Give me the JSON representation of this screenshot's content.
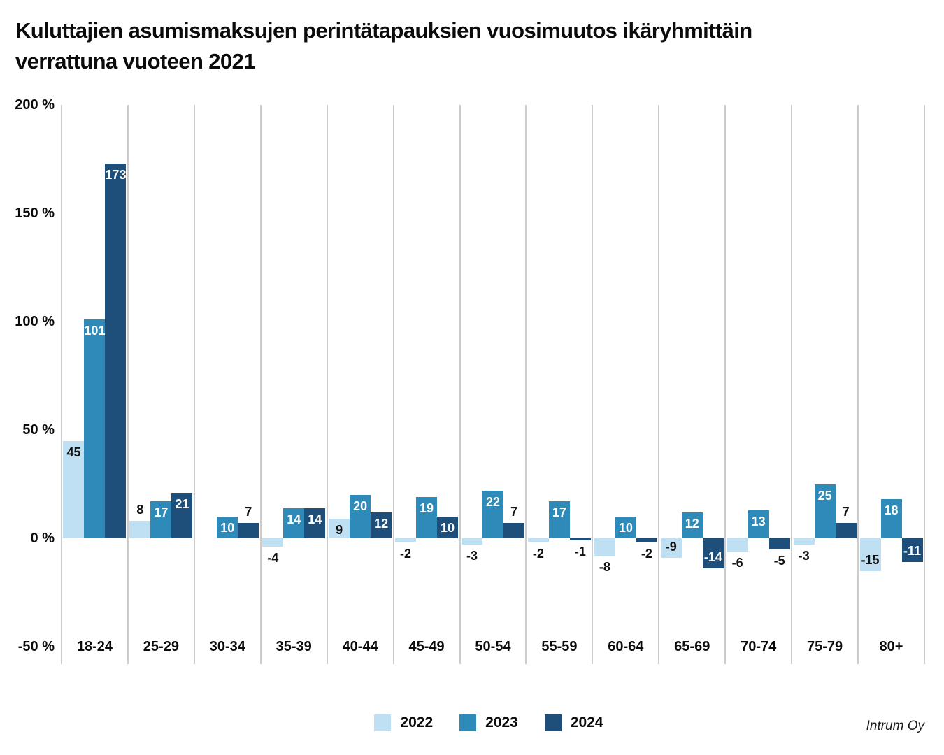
{
  "title": "Kuluttajien asumismaksujen perintätapauksien vuosimuutos ikäryhmittäin verrattuna vuoteen 2021",
  "title_lines": [
    "Kuluttajien asumismaksujen perintätapauksien vuosimuutos ikäryhmittäin",
    "verrattuna vuoteen 2021"
  ],
  "source": "Intrum Oy",
  "colors": {
    "series_2022": "#BEE0F2",
    "series_2023": "#2E8BB9",
    "series_2024": "#1E4F7B",
    "gridline": "#cccccc",
    "label_dark": "#111111",
    "label_light": "#ffffff"
  },
  "chart_data": {
    "type": "bar",
    "title": "Kuluttajien asumismaksujen perintätapauksien vuosimuutos ikäryhmittäin verrattuna vuoteen 2021",
    "xlabel": "",
    "ylabel": "",
    "ylim": [
      -50,
      200
    ],
    "grid": "vertical",
    "legend_position": "bottom-center",
    "categories": [
      "18-24",
      "25-29",
      "30-34",
      "35-39",
      "40-44",
      "45-49",
      "50-54",
      "55-59",
      "60-64",
      "65-69",
      "70-74",
      "75-79",
      "80+"
    ],
    "y_axis": {
      "tick_labels": [
        "200 %",
        "150 %",
        "100 %",
        "50 %",
        "0 %",
        "-50 %"
      ],
      "tick_values": [
        200,
        150,
        100,
        50,
        0,
        -50
      ]
    },
    "series": [
      {
        "name": "2022",
        "color": "#BEE0F2",
        "inside_label_color": "#111111",
        "values": [
          45,
          8,
          0,
          -4,
          9,
          -2,
          -3,
          -2,
          -8,
          -9,
          -6,
          -3,
          -15
        ],
        "labels": [
          "45",
          "8",
          "",
          "-4",
          "9",
          "-2",
          "-3",
          "-2",
          "-8",
          "-9",
          "-6",
          "-3",
          "-15"
        ],
        "label_placement": [
          "in",
          "above",
          "none",
          "below",
          "in",
          "below",
          "below",
          "below",
          "below",
          "in",
          "below",
          "below",
          "in"
        ]
      },
      {
        "name": "2023",
        "color": "#2E8BB9",
        "inside_label_color": "#ffffff",
        "values": [
          101,
          17,
          10,
          14,
          20,
          19,
          22,
          17,
          10,
          12,
          13,
          25,
          18
        ],
        "labels": [
          "101",
          "17",
          "10",
          "14",
          "20",
          "19",
          "22",
          "17",
          "10",
          "12",
          "13",
          "25",
          "18"
        ],
        "label_placement": [
          "in",
          "in",
          "in",
          "in",
          "in",
          "in",
          "in",
          "in",
          "in",
          "in",
          "in",
          "in",
          "in"
        ]
      },
      {
        "name": "2024",
        "color": "#1E4F7B",
        "inside_label_color": "#ffffff",
        "values": [
          173,
          21,
          7,
          14,
          12,
          10,
          7,
          -1,
          -2,
          -14,
          -5,
          7,
          -11
        ],
        "labels": [
          "173",
          "21",
          "7",
          "14",
          "12",
          "10",
          "7",
          "-1",
          "-2",
          "-14",
          "-5",
          "7",
          "-11"
        ],
        "label_placement": [
          "in",
          "in",
          "above",
          "in",
          "in",
          "in",
          "above",
          "below",
          "below",
          "in",
          "below",
          "above",
          "in"
        ]
      }
    ],
    "legend": [
      "2022",
      "2023",
      "2024"
    ]
  }
}
